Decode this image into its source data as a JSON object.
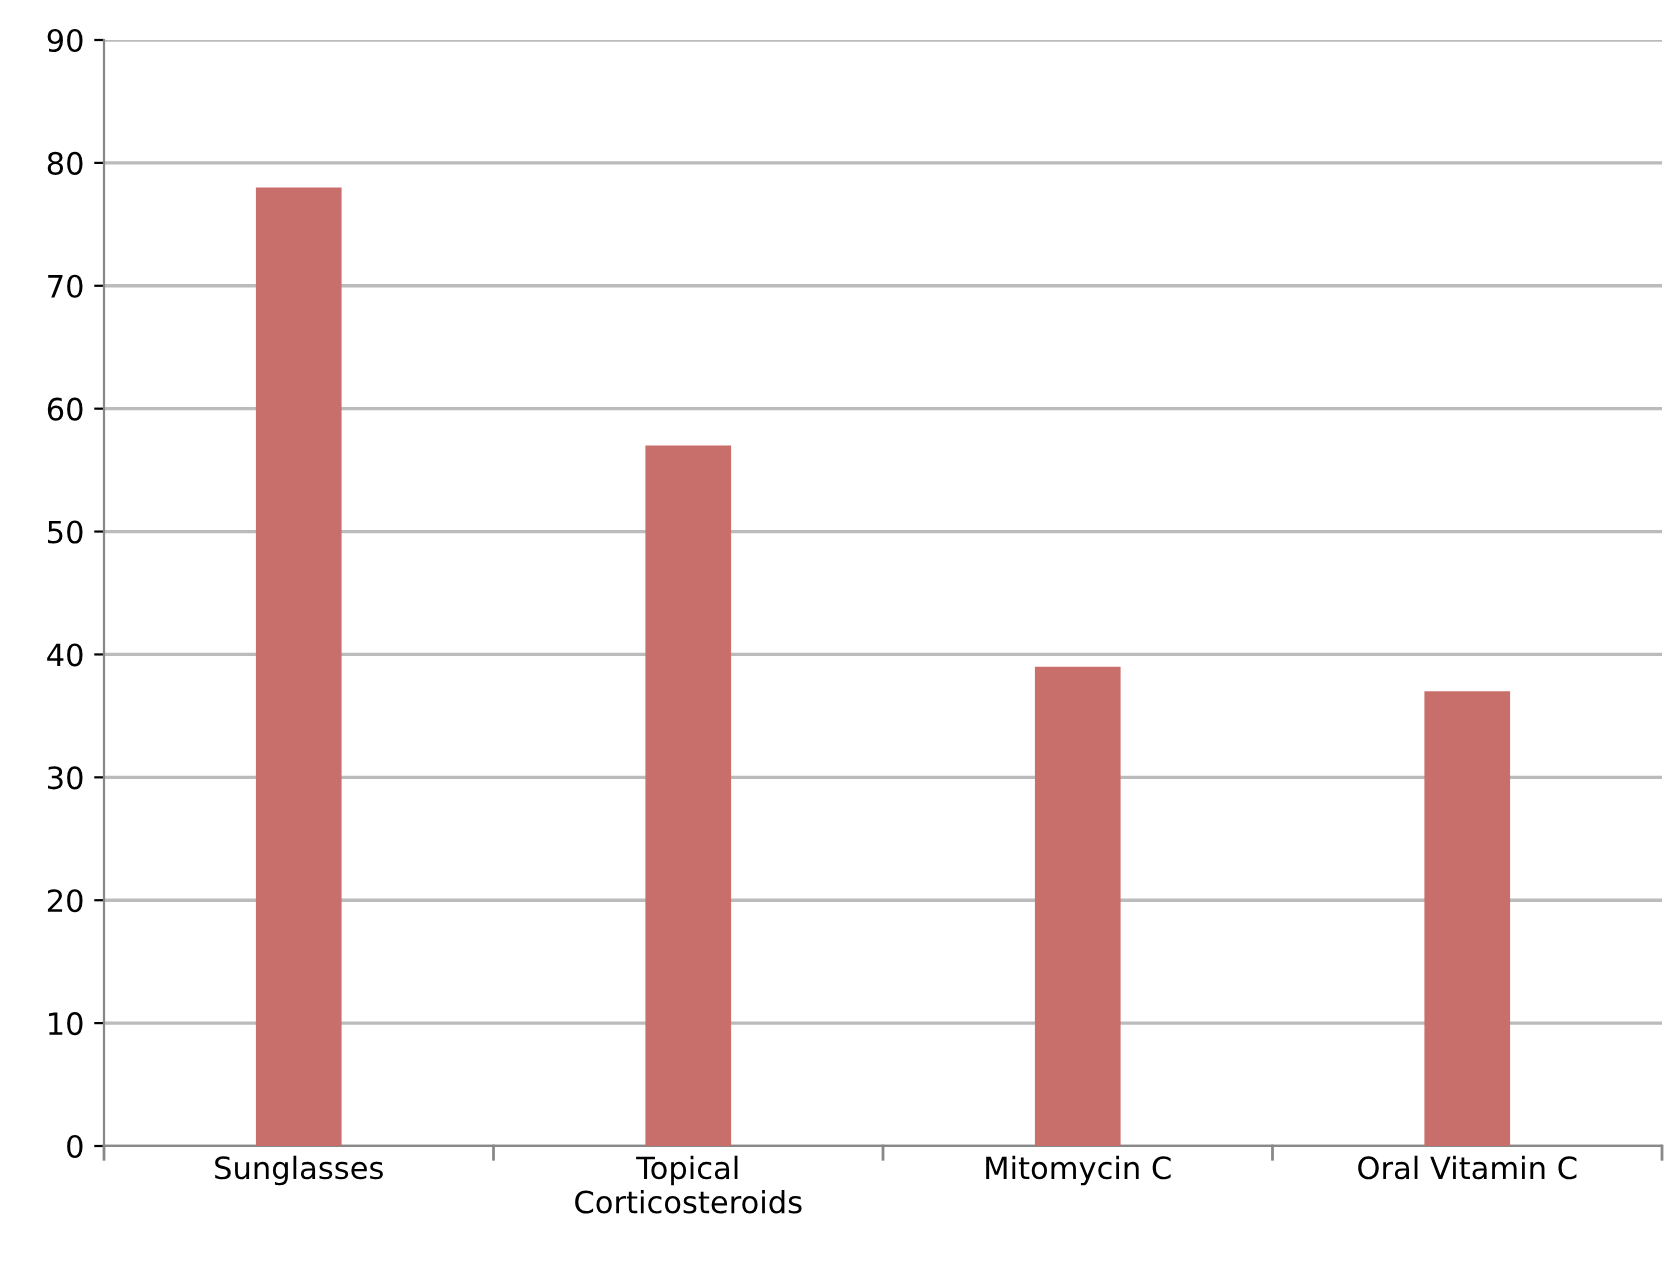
{
  "chart_data": {
    "type": "bar",
    "categories": [
      "Sunglasses",
      "Topical\nCorticosteroids",
      "Mitomycin C",
      "Oral Vitamin C"
    ],
    "values": [
      78,
      57,
      39,
      37
    ],
    "color": "#c86f6b",
    "ylim": [
      0,
      90
    ],
    "yticks": [
      0,
      10,
      20,
      30,
      40,
      50,
      60,
      70,
      80,
      90
    ],
    "grid": "y"
  }
}
